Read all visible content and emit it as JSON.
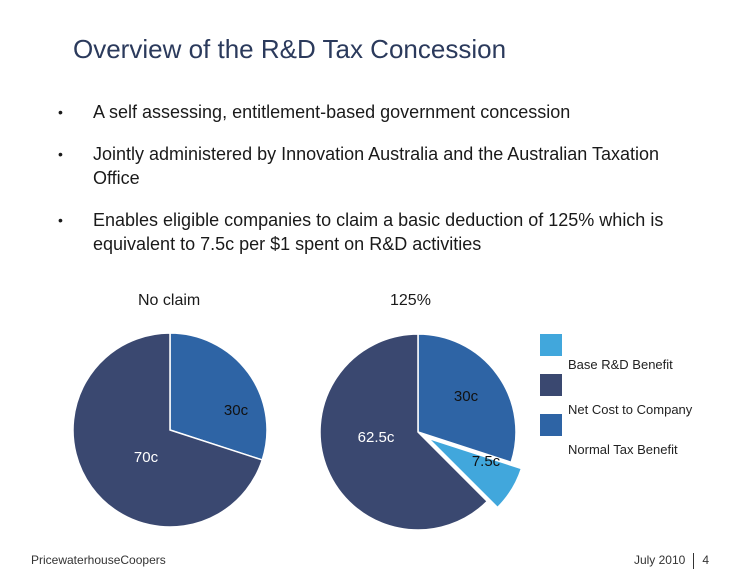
{
  "title": "Overview of the R&D Tax Concession",
  "bullets": [
    "A self assessing, entitlement-based government concession",
    "Jointly administered by Innovation Australia and the Australian Taxation Office",
    "Enables eligible companies to claim a basic deduction of 125% which is equivalent to 7.5c per $1 spent on R&D activities"
  ],
  "bullet_symbol": "•",
  "colors": {
    "title": "#2b3a5c",
    "normal_tax_benefit": "#2e64a5",
    "net_cost": "#3a4870",
    "base_rd_benefit": "#41a7dc"
  },
  "chart_data": [
    {
      "type": "pie",
      "title": "No claim",
      "slices": [
        {
          "label": "30c",
          "value": 30,
          "category": "Normal Tax Benefit"
        },
        {
          "label": "70c",
          "value": 70,
          "category": "Net Cost to Company"
        }
      ]
    },
    {
      "type": "pie",
      "title": "125%",
      "slices": [
        {
          "label": "30c",
          "value": 30,
          "category": "Normal Tax Benefit"
        },
        {
          "label": "7.5c",
          "value": 7.5,
          "category": "Base R&D Benefit",
          "exploded": true
        },
        {
          "label": "62.5c",
          "value": 62.5,
          "category": "Net Cost to Company"
        }
      ]
    }
  ],
  "legend": [
    {
      "label": "Base R&D Benefit",
      "color_key": "base_rd_benefit"
    },
    {
      "label": "Net Cost to Company",
      "color_key": "net_cost"
    },
    {
      "label": "Normal Tax Benefit",
      "color_key": "normal_tax_benefit"
    }
  ],
  "footer": {
    "company": "PricewaterhouseCoopers",
    "date": "July 2010",
    "page": "4"
  }
}
